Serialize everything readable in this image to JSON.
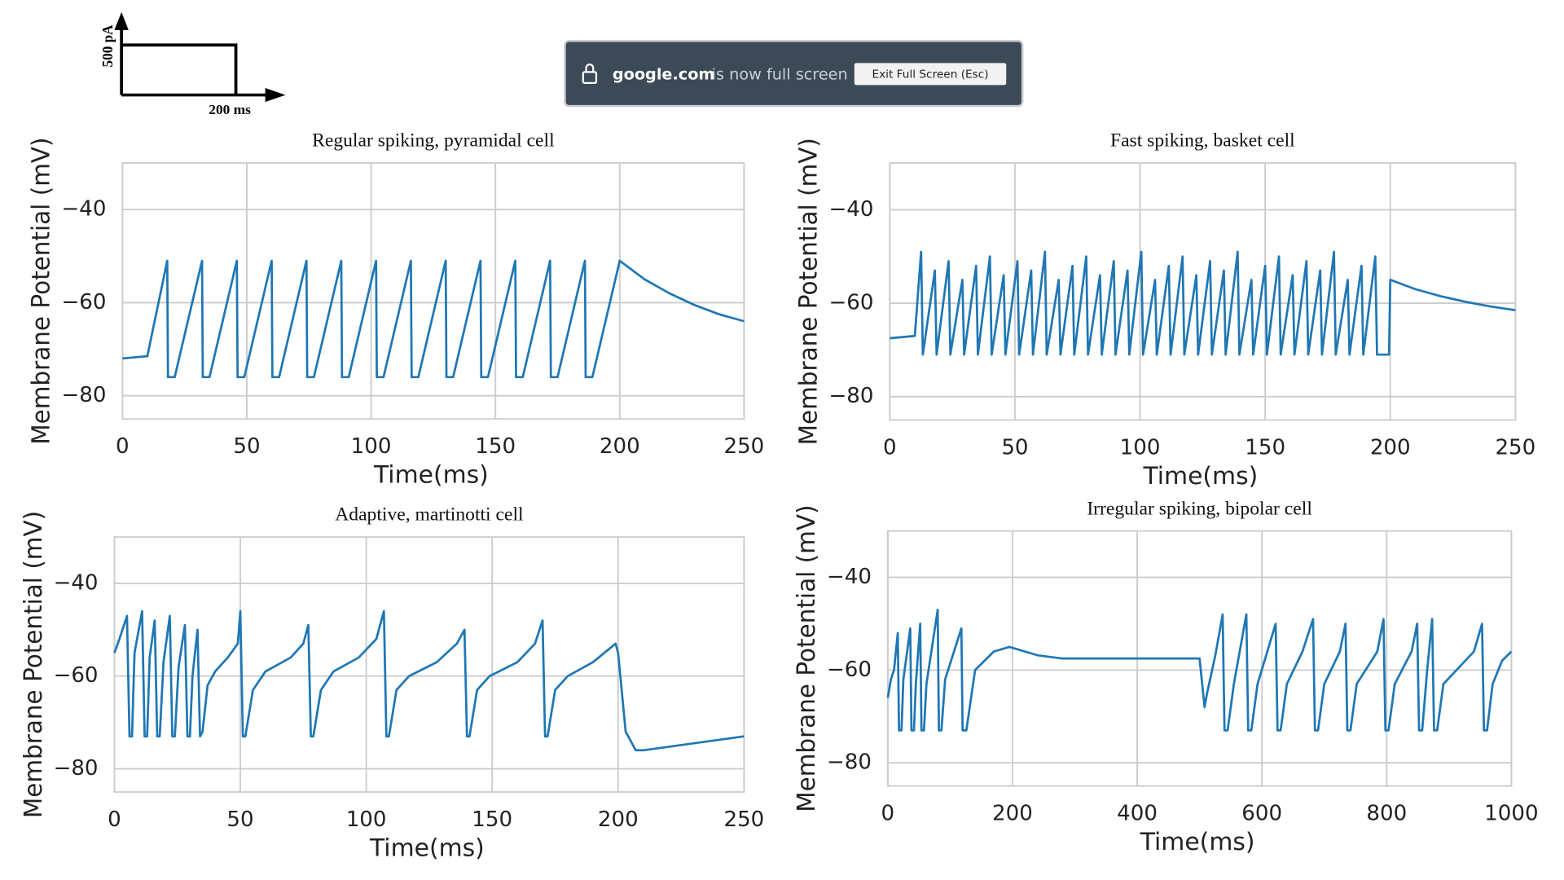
{
  "stimulus": {
    "current_label": "500 pA",
    "duration_label": "200 ms"
  },
  "fullscreen_banner": {
    "domain": "google.com",
    "message": "is now full screen",
    "button": "Exit Full Screen (Esc)"
  },
  "chart_data": [
    {
      "type": "line",
      "title": "Regular spiking, pyramidal cell",
      "x_label": "Time(ms)",
      "y_label": "Membrane Potential (mV)",
      "x": [
        0,
        10,
        18,
        18.3,
        21,
        32,
        32.3,
        35,
        46,
        46.3,
        49,
        60,
        60.3,
        63,
        74,
        74.3,
        77,
        88,
        88.3,
        91,
        102,
        102.3,
        105,
        116,
        116.3,
        119,
        130,
        130.3,
        133,
        144,
        144.3,
        147,
        158,
        158.3,
        161,
        172,
        172.3,
        175,
        186,
        186.3,
        189,
        200,
        210,
        220,
        230,
        240,
        250
      ],
      "series": [
        {
          "color": "#1f77b4",
          "values": [
            -72,
            -71.5,
            -51,
            -76,
            -76,
            -51,
            -76,
            -76,
            -51,
            -76,
            -76,
            -51,
            -76,
            -76,
            -51,
            -76,
            -76,
            -51,
            -76,
            -76,
            -51,
            -76,
            -76,
            -51,
            -76,
            -76,
            -51,
            -76,
            -76,
            -51,
            -76,
            -76,
            -51,
            -76,
            -76,
            -51,
            -76,
            -76,
            -51,
            -76,
            -76,
            -51,
            -55,
            -58,
            -60.5,
            -62.5,
            -64
          ]
        }
      ],
      "xlim": [
        0,
        250
      ],
      "xticks": [
        0,
        50,
        100,
        150,
        200,
        250
      ],
      "ylim": [
        -85,
        -30
      ],
      "yticks": [
        {
          "value": -40,
          "label": "−40"
        },
        {
          "value": -60,
          "label": "−60"
        },
        {
          "value": -80,
          "label": "−80"
        }
      ],
      "grid": true
    },
    {
      "type": "line",
      "title": "Fast spiking, basket cell",
      "x_label": "Time(ms)",
      "y_label": "Membrane Potential (mV)",
      "x": [
        0,
        10,
        12.5,
        13.2,
        18,
        18.7,
        23.5,
        24.2,
        29,
        29.7,
        34.5,
        35.2,
        40,
        40.7,
        45.5,
        46.2,
        51,
        51.7,
        56.5,
        57.2,
        62,
        62.7,
        67.5,
        68.2,
        73,
        73.7,
        78.5,
        79.2,
        84,
        84.7,
        89.5,
        90.2,
        95,
        95.7,
        100.5,
        101.2,
        106,
        106.7,
        111.5,
        112.2,
        117,
        117.7,
        122.5,
        123.2,
        128,
        128.7,
        133.5,
        134.2,
        139,
        139.7,
        144.5,
        145.2,
        150,
        150.7,
        155.5,
        156.2,
        161,
        161.7,
        166.5,
        167.2,
        172,
        172.7,
        177.5,
        178.2,
        183,
        183.7,
        188.5,
        189.2,
        194,
        194.7,
        199.5,
        200,
        210,
        220,
        230,
        240,
        250
      ],
      "series": [
        {
          "color": "#1f77b4",
          "values": [
            -67.5,
            -67,
            -49,
            -71,
            -53,
            -71,
            -51,
            -71,
            -55,
            -71,
            -52,
            -71,
            -50,
            -71,
            -54,
            -71,
            -51,
            -71,
            -53,
            -71,
            -49,
            -71,
            -55,
            -71,
            -52,
            -71,
            -50,
            -71,
            -54,
            -71,
            -51,
            -71,
            -53,
            -71,
            -49,
            -71,
            -55,
            -71,
            -52,
            -71,
            -50,
            -71,
            -54,
            -71,
            -51,
            -71,
            -53,
            -71,
            -49,
            -71,
            -55,
            -71,
            -52,
            -71,
            -50,
            -71,
            -54,
            -71,
            -51,
            -71,
            -53,
            -71,
            -49,
            -71,
            -55,
            -71,
            -52,
            -71,
            -50,
            -71,
            -71,
            -55,
            -57,
            -58.5,
            -59.7,
            -60.7,
            -61.5
          ]
        }
      ],
      "xlim": [
        0,
        250
      ],
      "xticks": [
        0,
        50,
        100,
        150,
        200,
        250
      ],
      "ylim": [
        -85,
        -30
      ],
      "yticks": [
        {
          "value": -40,
          "label": "−40"
        },
        {
          "value": -60,
          "label": "−60"
        },
        {
          "value": -80,
          "label": "−80"
        }
      ],
      "grid": true
    },
    {
      "type": "line",
      "title": "Adaptive, martinotti cell",
      "x_label": "Time(ms)",
      "y_label": "Membrane Potential (mV)",
      "x": [
        0,
        2,
        5,
        6,
        7,
        8,
        11,
        12,
        13,
        14,
        16,
        17,
        18,
        19.5,
        22,
        23,
        24,
        25.5,
        28,
        29,
        30,
        31,
        33,
        34,
        35,
        37,
        40,
        45,
        49,
        50,
        51,
        52,
        55,
        60,
        70,
        75,
        77,
        78,
        79,
        82,
        87,
        97,
        104,
        107,
        108,
        109,
        112,
        117,
        128,
        136,
        139,
        140,
        141,
        144,
        149,
        160,
        167,
        170,
        171,
        172,
        175,
        180,
        190,
        199,
        200,
        203,
        207,
        210,
        250
      ],
      "series": [
        {
          "color": "#1f77b4",
          "values": [
            -55,
            -52,
            -47,
            -73,
            -73,
            -55,
            -46,
            -73,
            -73,
            -56,
            -48,
            -73,
            -73,
            -57,
            -47,
            -73,
            -73,
            -58,
            -49,
            -73,
            -73,
            -60,
            -50,
            -73,
            -72,
            -62,
            -59,
            -56,
            -53,
            -46,
            -73,
            -73,
            -63,
            -59,
            -56,
            -53,
            -49,
            -73,
            -73,
            -63,
            -59,
            -56,
            -52,
            -46,
            -73,
            -73,
            -63,
            -60,
            -57,
            -53,
            -50,
            -73,
            -73,
            -63,
            -60,
            -57,
            -53,
            -48,
            -73,
            -73,
            -63,
            -60,
            -57,
            -53,
            -55,
            -72,
            -76,
            -76,
            -73
          ]
        }
      ],
      "xlim": [
        0,
        250
      ],
      "xticks": [
        0,
        50,
        100,
        150,
        200,
        250
      ],
      "ylim": [
        -85,
        -30
      ],
      "yticks": [
        {
          "value": -40,
          "label": "−40"
        },
        {
          "value": -60,
          "label": "−60"
        },
        {
          "value": -80,
          "label": "−80"
        }
      ],
      "grid": true
    },
    {
      "type": "line",
      "title": "Irregular spiking, bipolar cell",
      "x_label": "Time(ms)",
      "y_label": "Membrane Potential (mV)",
      "x": [
        0,
        5,
        10,
        16,
        18,
        22,
        25,
        36,
        38,
        42,
        45,
        52,
        54,
        58,
        62,
        80,
        82,
        86,
        92,
        118,
        120,
        126,
        140,
        170,
        195,
        240,
        280,
        500,
        508,
        512,
        525,
        537,
        540,
        545,
        555,
        575,
        578,
        583,
        593,
        622,
        625,
        630,
        640,
        665,
        682,
        685,
        690,
        700,
        725,
        734,
        737,
        742,
        752,
        785,
        795,
        798,
        803,
        813,
        840,
        849,
        852,
        857,
        865,
        873,
        876,
        881,
        891,
        940,
        953,
        956,
        961,
        970,
        985,
        1000
      ],
      "series": [
        {
          "color": "#1f77b4",
          "values": [
            -66,
            -62,
            -60,
            -52,
            -73,
            -73,
            -62,
            -51,
            -73,
            -73,
            -63,
            -50,
            -73,
            -73,
            -63,
            -47,
            -73,
            -73,
            -62,
            -51,
            -73,
            -73,
            -60,
            -56,
            -55,
            -56.8,
            -57.5,
            -57.5,
            -68,
            -65,
            -57,
            -48,
            -73,
            -73,
            -63,
            -48,
            -73,
            -73,
            -63,
            -50,
            -73,
            -73,
            -63,
            -56,
            -49,
            -73,
            -73,
            -63,
            -56,
            -50,
            -73,
            -73,
            -63,
            -56,
            -49,
            -73,
            -73,
            -63,
            -56,
            -50,
            -73,
            -73,
            -60,
            -49,
            -73,
            -73,
            -63,
            -56,
            -50,
            -73,
            -73,
            -63,
            -58,
            -56
          ]
        }
      ],
      "xlim": [
        0,
        1000
      ],
      "xticks": [
        0,
        200,
        400,
        600,
        800,
        1000
      ],
      "ylim": [
        -85,
        -30
      ],
      "yticks": [
        {
          "value": -40,
          "label": "−40"
        },
        {
          "value": -60,
          "label": "−60"
        },
        {
          "value": -80,
          "label": "−80"
        }
      ],
      "grid": true
    }
  ]
}
